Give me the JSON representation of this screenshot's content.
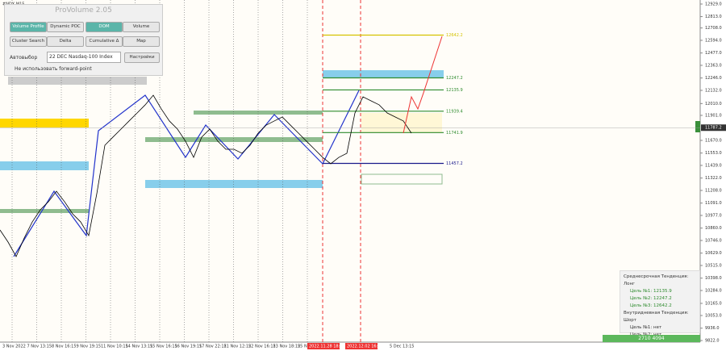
{
  "symbol": "#NDX,M15",
  "panel": {
    "title": "ProVolume 2.05",
    "buttons": [
      "Volume Profile",
      "Dynamic POC",
      "DOM",
      "Volume",
      "Cluster Search",
      "Delta",
      "Cumulative Δ",
      "Map"
    ],
    "auto_label": "Автовыбор",
    "instrument": "22 DEC Nasdaq-100 Index",
    "settings": "Настройки",
    "forward_label": "Не использовать forward-point"
  },
  "chart_data": {
    "type": "line",
    "ylim": [
      9822,
      12929
    ],
    "yticks": [
      {
        "value": 12929,
        "label": "12929.0"
      },
      {
        "value": 12813,
        "label": "12813.0"
      },
      {
        "value": 12708,
        "label": "12708.0"
      },
      {
        "value": 12594,
        "label": "12594.0"
      },
      {
        "value": 12477,
        "label": "12477.0"
      },
      {
        "value": 12363,
        "label": "12363.0"
      },
      {
        "value": 12246,
        "label": "12246.0"
      },
      {
        "value": 12132,
        "label": "12132.0"
      },
      {
        "value": 12010,
        "label": "12010.0"
      },
      {
        "value": 11901,
        "label": "11901.0"
      },
      {
        "value": 11670,
        "label": "11670.0"
      },
      {
        "value": 11553,
        "label": "11553.0"
      },
      {
        "value": 11439,
        "label": "11439.0"
      },
      {
        "value": 11322,
        "label": "11322.0"
      },
      {
        "value": 11208,
        "label": "11208.0"
      },
      {
        "value": 11091,
        "label": "11091.0"
      },
      {
        "value": 10977,
        "label": "10977.0"
      },
      {
        "value": 10860,
        "label": "10860.0"
      },
      {
        "value": 10746,
        "label": "10746.0"
      },
      {
        "value": 10629,
        "label": "10629.0"
      },
      {
        "value": 10515,
        "label": "10515.0"
      },
      {
        "value": 10398,
        "label": "10398.0"
      },
      {
        "value": 10284,
        "label": "10284.0"
      },
      {
        "value": 10165,
        "label": "10165.0"
      },
      {
        "value": 10053,
        "label": "10053.0"
      },
      {
        "value": 9936,
        "label": "9936.0"
      },
      {
        "value": 9822,
        "label": "9822.0"
      }
    ],
    "current_price": {
      "value": 11787.2,
      "label": "11787.2"
    },
    "categories": [
      "3 Nov 2022",
      "7 Nov 13:15",
      "8 Nov 16:15",
      "9 Nov 19:15",
      "11 Nov 10:15",
      "14 Nov 13:15",
      "15 Nov 16:15",
      "16 Nov 19:15",
      "17 Nov 22:15",
      "21 Nov 12:15",
      "22 Nov 16:15",
      "23 Nov 18:15",
      "25 Nov 10:15"
    ],
    "highlight_dates": [
      "2022.11.28 18:00",
      "2022.12.02 16:45"
    ],
    "last_date": "5 Dec 13:15",
    "price": [
      10843,
      10731,
      10597,
      10768,
      10917,
      11029,
      11104,
      11200,
      11104,
      10992,
      10917,
      10791,
      11178,
      11625,
      11700,
      11774,
      11849,
      11923,
      11998,
      12087,
      11960,
      11849,
      11774,
      11662,
      11513,
      11700,
      11774,
      11662,
      11588,
      11588,
      11551,
      11625,
      11737,
      11811,
      11849,
      11886,
      11811,
      11737,
      11662,
      11588,
      11513,
      11454,
      11513,
      11551,
      11923,
      12072,
      12035,
      11998,
      11923,
      11886,
      11849,
      11737
    ],
    "forecast": [
      11737,
      12072,
      11960,
      12109,
      12631
    ],
    "levels": [
      {
        "value": 12642.2,
        "label": "12642.2",
        "color": "#d4c200"
      },
      {
        "value": 12247.2,
        "label": "12247.2",
        "color": "#2e8b2e"
      },
      {
        "value": 12135.9,
        "label": "12135.9",
        "color": "#2e8b2e"
      },
      {
        "value": 11939.4,
        "label": "11939.4",
        "color": "#2e8b2e"
      },
      {
        "value": 11741.9,
        "label": "11741.9",
        "color": "#2e8b2e"
      },
      {
        "value": 11457.2,
        "label": "11457.2",
        "color": "#1a1a8c"
      }
    ]
  },
  "info": {
    "mid_trend": "Среднесрочная Тенденция: Лонг",
    "mid_targets": [
      "Цель №1: 12135.9",
      "Цель №2: 12247.2",
      "Цель №3: 12642.2"
    ],
    "intra_trend": "Внутридневная Тенденция: Шорт",
    "intra_targets": [
      "Цель №1: нет",
      "Цель №2: нет"
    ]
  },
  "volume_footer": "2710 4094"
}
